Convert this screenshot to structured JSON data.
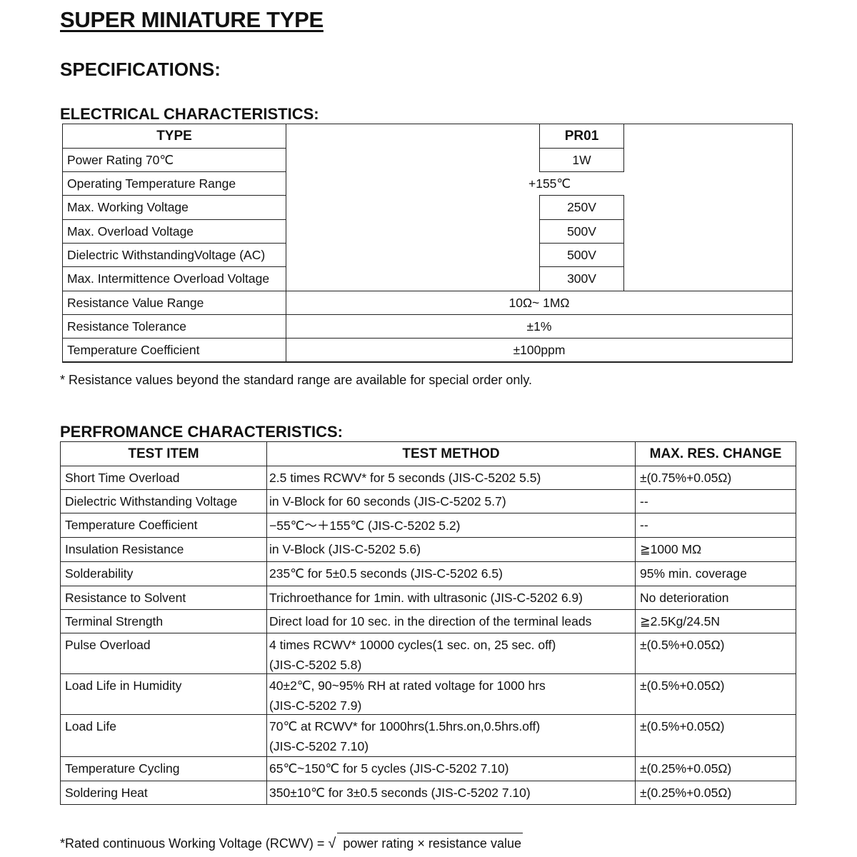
{
  "title": "SUPER MINIATURE TYPE",
  "specifications": "SPECIFICATIONS:",
  "electrical": {
    "heading": "ELECTRICAL CHARACTERISTICS:",
    "type_header": "TYPE",
    "model": "PR01",
    "rows": [
      {
        "label": "Power Rating 70℃",
        "value": "1W"
      },
      {
        "label": "Operating Temperature Range",
        "value": "+155℃"
      },
      {
        "label": "Max. Working Voltage",
        "value": "250V"
      },
      {
        "label": "Max. Overload Voltage",
        "value": "500V"
      },
      {
        "label": "Dielectric WithstandingVoltage (AC)",
        "value": "500V"
      },
      {
        "label": "Max. Intermittence Overload Voltage",
        "value": "300V"
      },
      {
        "label": "Resistance Value Range",
        "value": "10Ω~ 1MΩ"
      },
      {
        "label": "Resistance Tolerance",
        "value": "±1%"
      },
      {
        "label": "Temperature Coefficient",
        "value": "±100ppm"
      }
    ],
    "footnote": "* Resistance values beyond the standard range are available for special order only."
  },
  "performance": {
    "heading": "PERFROMANCE CHARACTERISTICS:",
    "headers": [
      "TEST ITEM",
      "TEST METHOD",
      "MAX. RES. CHANGE"
    ],
    "rows": [
      {
        "item": "Short Time Overload",
        "method": "2.5 times RCWV* for 5 seconds (JIS-C-5202 5.5)",
        "method2": "",
        "change": "±(0.75%+0.05Ω)"
      },
      {
        "item": "Dielectric Withstanding Voltage",
        "method": "in V-Block for 60 seconds (JIS-C-5202 5.7)",
        "method2": "",
        "change": "--"
      },
      {
        "item": "Temperature Coefficient",
        "method": "−55℃～＋155℃  (JIS-C-5202 5.2)",
        "method2": "",
        "change": "--"
      },
      {
        "item": "Insulation Resistance",
        "method": "in V-Block (JIS-C-5202 5.6)",
        "method2": "",
        "change": "≧1000 MΩ"
      },
      {
        "item": "Solderability",
        "method": "235℃  for 5±0.5 seconds (JIS-C-5202 6.5)",
        "method2": "",
        "change": "95% min. coverage"
      },
      {
        "item": "Resistance to Solvent",
        "method": "Trichroethance for 1min. with ultrasonic (JIS-C-5202 6.9)",
        "method2": "",
        "change": "No deterioration"
      },
      {
        "item": "Terminal Strength",
        "method": "Direct load for 10 sec. in the direction of the terminal leads",
        "method2": "",
        "change": "≧2.5Kg/24.5N"
      },
      {
        "item": "Pulse Overload",
        "method": "4 times RCWV* 10000 cycles(1 sec. on, 25 sec. off)",
        "method2": "(JIS-C-5202 5.8)",
        "change": "±(0.5%+0.05Ω)"
      },
      {
        "item": "Load Life in Humidity",
        "method": "40±2℃, 90~95% RH at rated voltage for 1000 hrs",
        "method2": "(JIS-C-5202 7.9)",
        "change": "±(0.5%+0.05Ω)"
      },
      {
        "item": "Load Life",
        "method": "70℃  at RCWV* for 1000hrs(1.5hrs.on,0.5hrs.off)",
        "method2": "(JIS-C-5202 7.10)",
        "change": "±(0.5%+0.05Ω)"
      },
      {
        "item": "Temperature Cycling",
        "method": "65℃~150℃  for 5 cycles (JIS-C-5202 7.10)",
        "method2": "",
        "change": "±(0.25%+0.05Ω)"
      },
      {
        "item": "Soldering Heat",
        "method": "350±10℃  for 3±0.5 seconds (JIS-C-5202 7.10)",
        "method2": "",
        "change": "±(0.25%+0.05Ω)"
      }
    ]
  },
  "formula": {
    "lhs": "*Rated continuous Working Voltage (RCWV) = ",
    "radicand": "power rating × resistance value"
  }
}
